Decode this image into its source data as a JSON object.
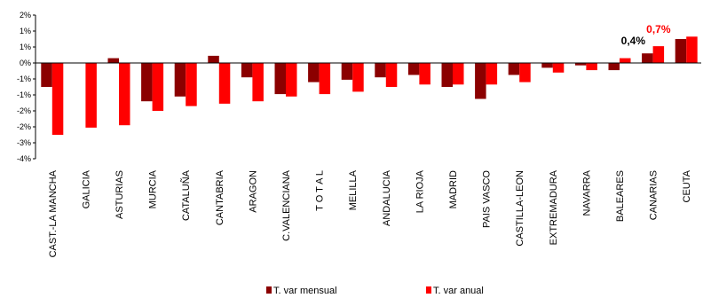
{
  "chart_data": {
    "type": "bar",
    "categories": [
      "CAST.-LA MANCHA",
      "GALICIA",
      "ASTURIAS",
      "MURCIA",
      "CATALUÑA",
      "CANTABRIA",
      "ARAGON",
      "C.VALENCIANA",
      "T O T A L",
      "MELILLA",
      "ANDALUCIA",
      "LA RIOJA",
      "MADRID",
      "PAIS VASCO",
      "CASTILLA-LEON",
      "EXTREMADURA",
      "NAVARRA",
      "BALEARES",
      "CANARIAS",
      "CEUTA"
    ],
    "series": [
      {
        "name": "T. var mensual",
        "color": "#8B0000",
        "values": [
          -1.0,
          0.0,
          0.2,
          -1.6,
          -1.4,
          0.3,
          -0.6,
          -1.3,
          -0.8,
          -0.7,
          -0.6,
          -0.5,
          -1.0,
          -1.5,
          -0.5,
          -0.2,
          -0.1,
          -0.3,
          0.4,
          1.0
        ]
      },
      {
        "name": "T. var anual",
        "color": "#FF0000",
        "values": [
          -3.0,
          -2.7,
          -2.6,
          -2.0,
          -1.8,
          -1.7,
          -1.6,
          -1.4,
          -1.3,
          -1.2,
          -1.0,
          -0.9,
          -0.9,
          -0.9,
          -0.8,
          -0.4,
          -0.3,
          0.2,
          0.7,
          1.1
        ]
      }
    ],
    "ylim": [
      -4,
      2
    ],
    "yticks": [
      "-4%",
      "-3%",
      "-2%",
      "-2%",
      "-1%",
      "-1%",
      "0%",
      "1%",
      "1%",
      "2%"
    ],
    "annotations": [
      {
        "text": "0,4%",
        "category_index": 18,
        "series_index": 0,
        "color": "#000000"
      },
      {
        "text": "0,7%",
        "category_index": 18,
        "series_index": 1,
        "color": "#FF0000"
      }
    ],
    "legend_position": "bottom"
  }
}
